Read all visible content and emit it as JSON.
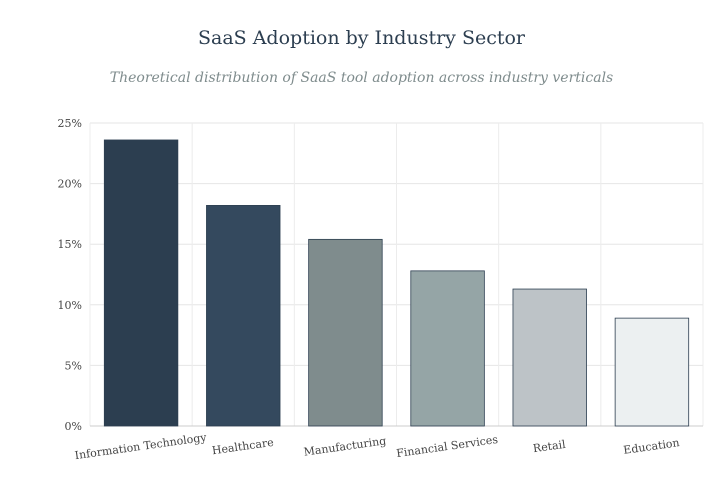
{
  "title": "SaaS Adoption by Industry Sector",
  "subtitle": "Theoretical distribution of SaaS tool adoption across industry verticals",
  "chart_data": {
    "type": "bar",
    "categories": [
      "Information Technology",
      "Healthcare",
      "Manufacturing",
      "Financial Services",
      "Retail",
      "Education"
    ],
    "values": [
      23.6,
      18.2,
      15.4,
      12.8,
      11.3,
      8.9
    ],
    "colors": [
      "#2c3e50",
      "#34495e",
      "#7f8c8d",
      "#95a5a6",
      "#bdc3c7",
      "#ecf0f1"
    ],
    "ylim": [
      0,
      25
    ],
    "yticks": [
      "0%",
      "5%",
      "10%",
      "15%",
      "20%",
      "25%"
    ],
    "grid": true,
    "xlabel": "",
    "ylabel": ""
  }
}
